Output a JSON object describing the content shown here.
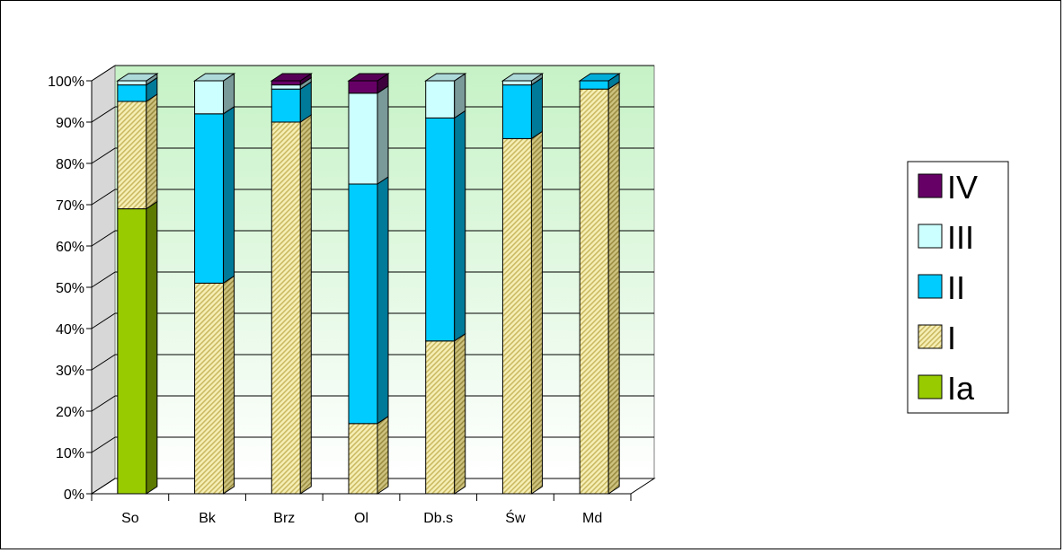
{
  "chart_data": {
    "type": "bar",
    "stacked": "100%",
    "three_d": true,
    "categories": [
      "So",
      "Bk",
      "Brz",
      "Ol",
      "Db.s",
      "Św",
      "Md"
    ],
    "series": [
      {
        "name": "Ia",
        "values": [
          69,
          0,
          0,
          0,
          0,
          0,
          0
        ]
      },
      {
        "name": "I",
        "values": [
          26,
          51,
          90,
          17,
          37,
          86,
          98
        ]
      },
      {
        "name": "II",
        "values": [
          4,
          41,
          8,
          58,
          54,
          13,
          2
        ]
      },
      {
        "name": "III",
        "values": [
          1,
          8,
          1,
          22,
          9,
          1,
          0
        ]
      },
      {
        "name": "IV",
        "values": [
          0,
          0,
          1,
          3,
          0,
          0,
          0
        ]
      }
    ],
    "y_ticks": [
      "0%",
      "10%",
      "20%",
      "30%",
      "40%",
      "50%",
      "60%",
      "70%",
      "80%",
      "90%",
      "100%"
    ],
    "ylim": [
      0,
      100
    ],
    "grid": true,
    "legend": "right",
    "colors": {
      "Ia": "#99CC00",
      "I": "#F2E8A2",
      "II": "#00CCFF",
      "III": "#CCFFFF",
      "IV": "#660066"
    }
  }
}
